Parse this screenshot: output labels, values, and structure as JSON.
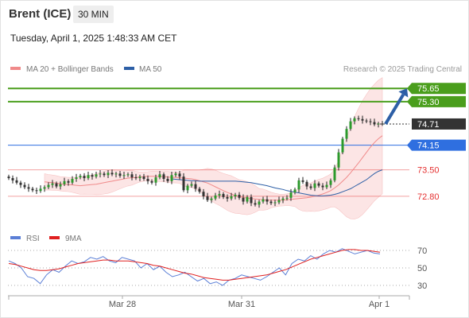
{
  "header": {
    "instrument": "Brent (ICE)",
    "timeframe": "30 MIN",
    "datetime": "Tuesday, April 1, 2025 1:48:33 AM CET"
  },
  "legend": {
    "ma20_label": "MA 20 + Bollinger Bands",
    "ma20_color": "#f08a8a",
    "ma50_label": "MA 50",
    "ma50_color": "#2d5fa6",
    "credit": "Research © 2025 Trading Central"
  },
  "rsi_legend": {
    "rsi_label": "RSI",
    "rsi_color": "#5b7fd6",
    "ma_label": "9MA",
    "ma_color": "#e02020"
  },
  "chart_data": [
    {
      "type": "candlestick",
      "title": "Brent (ICE)",
      "timeframe": "30 MIN",
      "x_ticks": [
        "Mar 28",
        "Mar 31",
        "Apr 1"
      ],
      "ylim": [
        72.0,
        76.2
      ],
      "last_price": 74.71,
      "levels": [
        {
          "value": 75.65,
          "label": "75.65",
          "kind": "resistance",
          "color": "#4a9e1c"
        },
        {
          "value": 75.3,
          "label": "75.30",
          "kind": "resistance",
          "color": "#4a9e1c"
        },
        {
          "value": 74.71,
          "label": "74.71",
          "kind": "last",
          "color": "#333333"
        },
        {
          "value": 74.15,
          "label": "74.15",
          "kind": "pivot",
          "color": "#2f6fe0"
        },
        {
          "value": 73.5,
          "label": "73.50",
          "kind": "support",
          "color": "#e53030"
        },
        {
          "value": 72.8,
          "label": "72.80",
          "kind": "support",
          "color": "#e53030"
        }
      ],
      "arrow": {
        "from": 74.71,
        "to": 75.65,
        "direction": "up",
        "color": "#2d5fa6"
      },
      "series": [
        {
          "name": "Close",
          "values": [
            73.28,
            73.22,
            73.16,
            73.1,
            73.04,
            73.0,
            72.96,
            72.94,
            73.0,
            73.04,
            73.1,
            73.14,
            73.06,
            73.12,
            73.2,
            73.16,
            73.26,
            73.3,
            73.34,
            73.28,
            73.36,
            73.32,
            73.38,
            73.4,
            73.36,
            73.42,
            73.38,
            73.4,
            73.34,
            73.36,
            73.38,
            73.3,
            73.28,
            73.32,
            73.26,
            73.2,
            73.16,
            73.3,
            73.38,
            73.26,
            73.2,
            73.36,
            73.4,
            73.32,
            72.96,
            73.08,
            73.12,
            73.0,
            72.92,
            72.8,
            72.7,
            72.74,
            72.82,
            72.86,
            72.78,
            72.74,
            72.8,
            72.84,
            72.76,
            72.66,
            72.78,
            72.62,
            72.58,
            72.66,
            72.72,
            72.66,
            72.62,
            72.64,
            72.7,
            72.74,
            72.76,
            72.9,
            72.98,
            73.22,
            73.18,
            73.06,
            73.02,
            73.14,
            73.08,
            73.04,
            73.1,
            73.22,
            73.56,
            73.96,
            74.32,
            74.58,
            74.78,
            74.86,
            74.84,
            74.8,
            74.78,
            74.76,
            74.7,
            74.72,
            74.71
          ]
        },
        {
          "name": "MA 20",
          "values": [
            73.18,
            73.17,
            73.16,
            73.15,
            73.13,
            73.12,
            73.11,
            73.1,
            73.09,
            73.08,
            73.09,
            73.1,
            73.11,
            73.12,
            73.14,
            73.16,
            73.18,
            73.2,
            73.22,
            73.24,
            73.26,
            73.28,
            73.29,
            73.3,
            73.31,
            73.32,
            73.33,
            73.33,
            73.33,
            73.32,
            73.32,
            73.31,
            73.3,
            73.3,
            73.29,
            73.28,
            73.27,
            73.26,
            73.24,
            73.21,
            73.18,
            73.15,
            73.1,
            73.05,
            73.0,
            72.95,
            72.9,
            72.86,
            72.82,
            72.79,
            72.77,
            72.75,
            72.74,
            72.73,
            72.72,
            72.71,
            72.7,
            72.7,
            72.7,
            72.7,
            72.7,
            72.71,
            72.72,
            72.73,
            72.74,
            72.75,
            72.76,
            72.78,
            72.8,
            72.83,
            72.86,
            72.9,
            72.95,
            73.02,
            73.1,
            73.2,
            73.3,
            73.42,
            73.55,
            73.68,
            73.82,
            73.96,
            74.1,
            74.22,
            74.32,
            74.4
          ]
        },
        {
          "name": "MA 50",
          "values": [
            73.26,
            73.25,
            73.24,
            73.23,
            73.22,
            73.21,
            73.21,
            73.2,
            73.2,
            73.2,
            73.2,
            73.2,
            73.2,
            73.2,
            73.2,
            73.2,
            73.2,
            73.19,
            73.18,
            73.17,
            73.16,
            73.14,
            73.12,
            73.1,
            73.08,
            73.05,
            73.02,
            73.0,
            72.98,
            72.95,
            72.93,
            72.91,
            72.89,
            72.87,
            72.85,
            72.83,
            72.82,
            72.81,
            72.81,
            72.82,
            72.83,
            72.85,
            72.88,
            72.92,
            72.96,
            73.0,
            73.06,
            73.12,
            73.18,
            73.24,
            73.32,
            73.4,
            73.46,
            73.5
          ]
        },
        {
          "name": "RSI",
          "values": [
            58,
            55,
            50,
            40,
            38,
            32,
            42,
            48,
            45,
            52,
            58,
            55,
            57,
            62,
            60,
            63,
            58,
            56,
            62,
            60,
            58,
            50,
            55,
            48,
            52,
            45,
            40,
            42,
            45,
            40,
            35,
            38,
            32,
            34,
            30,
            36,
            38,
            42,
            40,
            38,
            36,
            40,
            45,
            50,
            42,
            55,
            60,
            58,
            64,
            60,
            66,
            70,
            68,
            72,
            69,
            66,
            68,
            70,
            67,
            66
          ]
        },
        {
          "name": "9MA",
          "values": [
            55,
            54,
            52,
            50,
            48,
            47,
            47,
            48,
            49,
            51,
            53,
            55,
            56,
            57,
            58,
            59,
            59,
            58,
            58,
            58,
            57,
            56,
            55,
            53,
            52,
            50,
            48,
            46,
            44,
            43,
            41,
            39,
            38,
            37,
            36,
            36,
            37,
            38,
            39,
            40,
            41,
            42,
            44,
            46,
            48,
            51,
            54,
            57,
            60,
            62,
            64,
            66,
            68,
            70,
            71,
            71,
            70,
            70,
            69,
            68
          ]
        }
      ],
      "bollinger_band": "shaded",
      "legend_position": "top-left"
    },
    {
      "type": "line",
      "title": "RSI",
      "yticks": [
        "70",
        "50",
        "30"
      ],
      "ylim": [
        20,
        80
      ],
      "reference_lines": [
        70,
        50,
        30
      ]
    }
  ]
}
